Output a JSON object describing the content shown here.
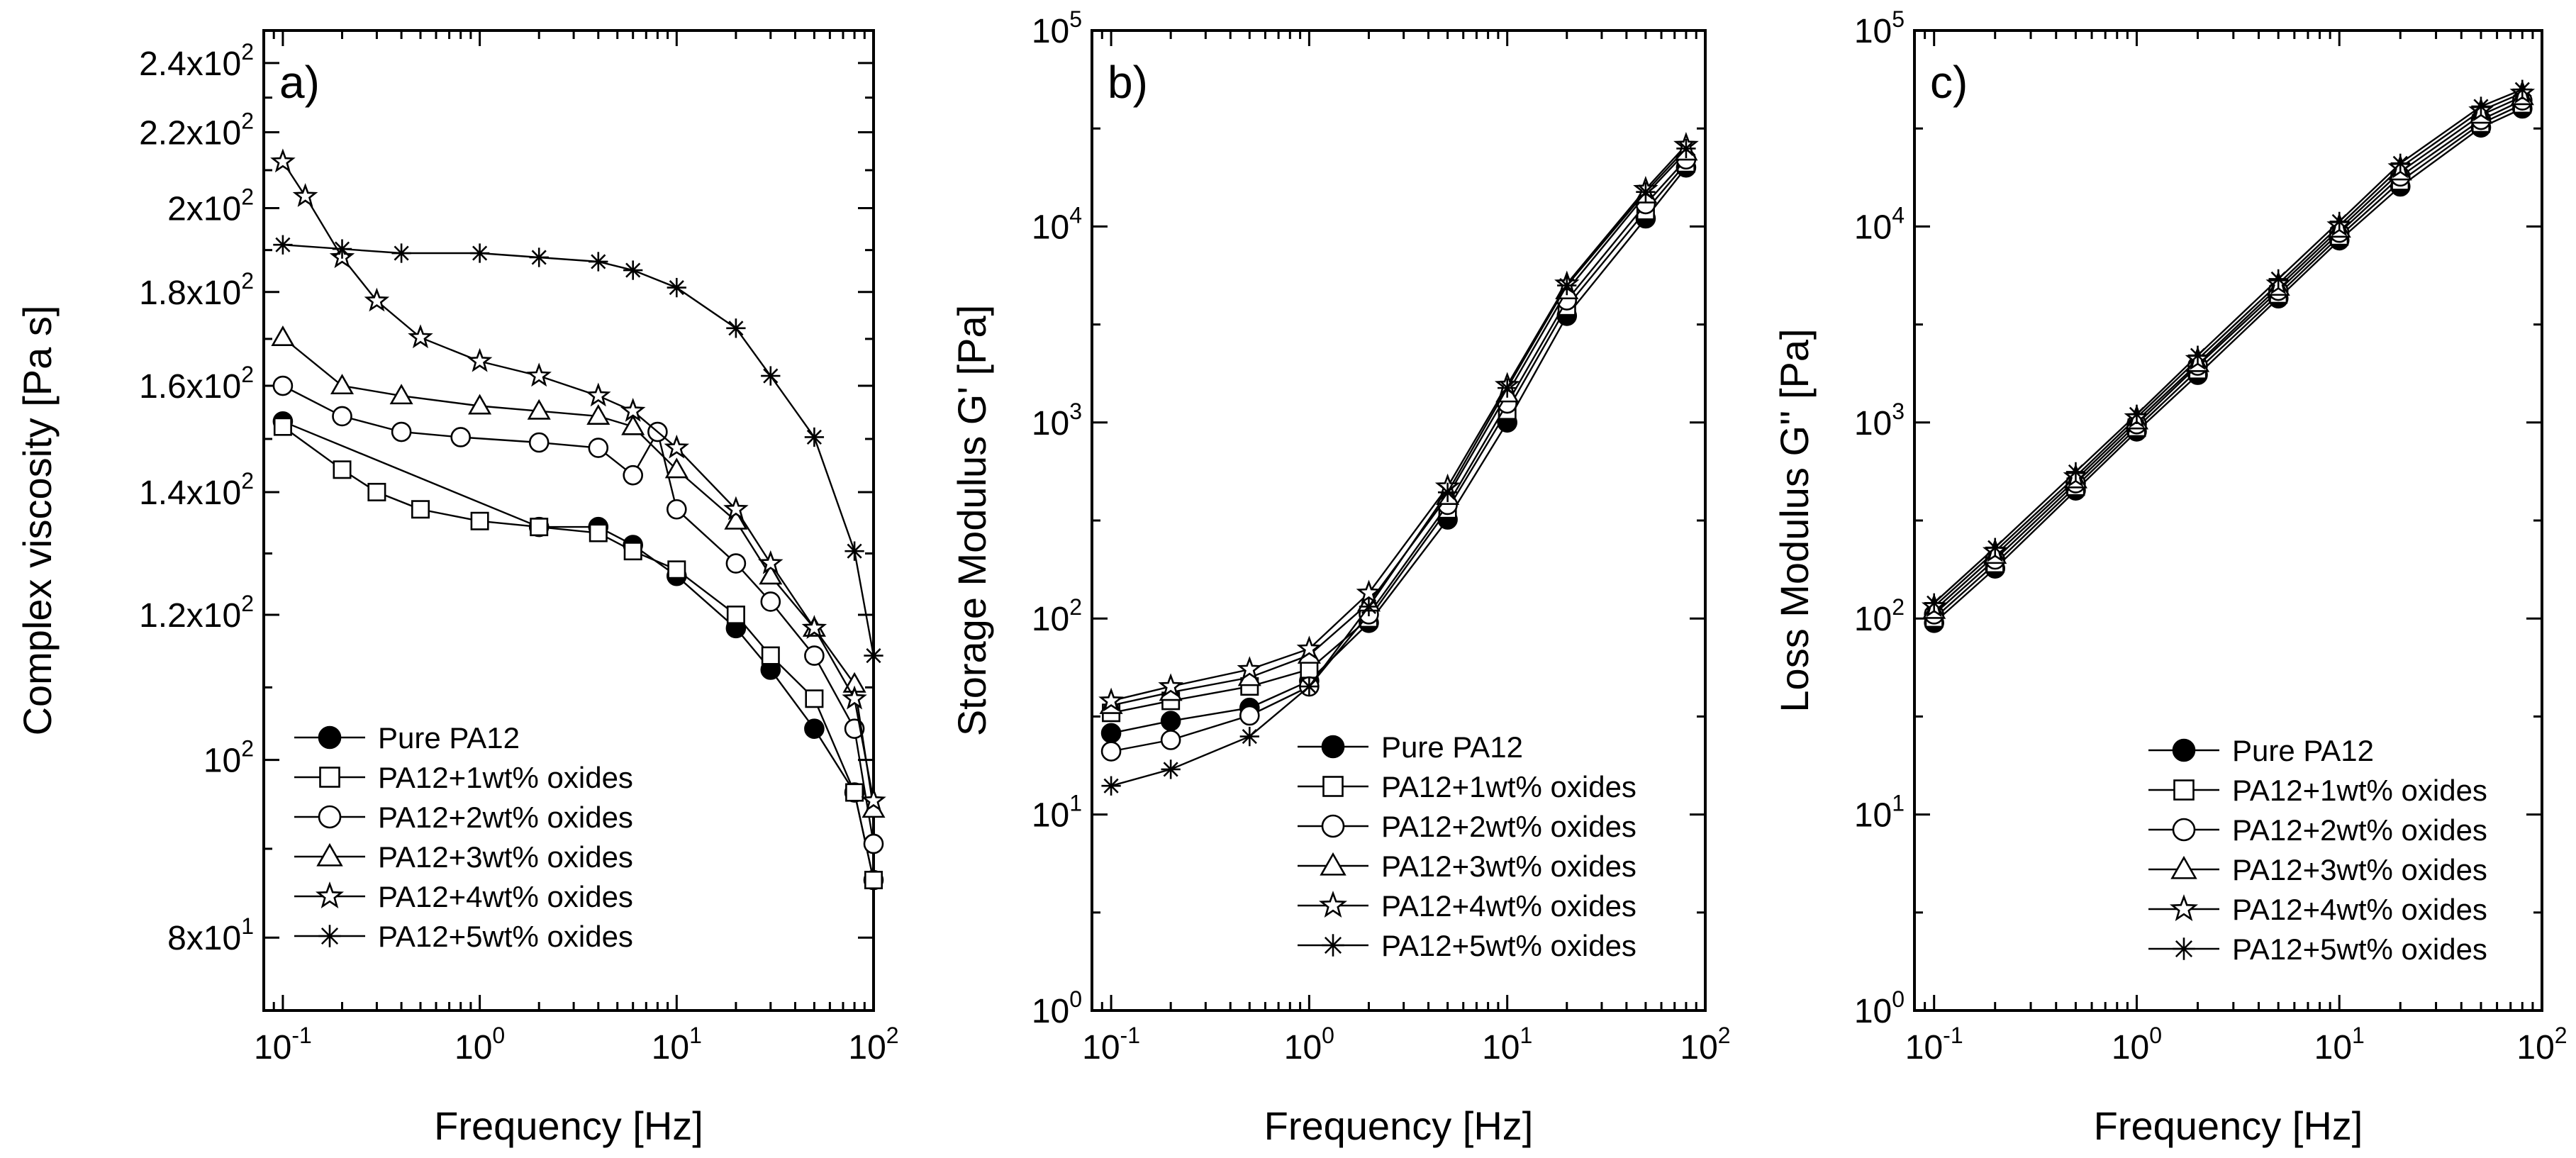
{
  "figure": {
    "panels": [
      "a",
      "b",
      "c"
    ]
  },
  "legend_entries": [
    "Pure PA12",
    "PA12+1wt% oxides",
    "PA12+2wt% oxides",
    "PA12+3wt% oxides",
    "PA12+4wt% oxides",
    "PA12+5wt% oxides"
  ],
  "marker_styles": [
    "filled-circle",
    "open-square",
    "open-circle",
    "open-triangle",
    "open-star",
    "asterisk"
  ],
  "colors": {
    "ink": "#000000",
    "background": "#ffffff"
  },
  "chart_data": [
    {
      "type": "line",
      "panel_label": "a)",
      "title": "",
      "xlabel": "Frequency [Hz]",
      "ylabel": "Complex viscosity [Pa s]",
      "xscale": "log",
      "yscale": "log",
      "xlim": [
        0.08,
        100
      ],
      "ylim": [
        73,
        250
      ],
      "x_ticks": [
        {
          "value": 0.1,
          "base": "10",
          "exp": "-1"
        },
        {
          "value": 1,
          "base": "10",
          "exp": "0"
        },
        {
          "value": 10,
          "base": "10",
          "exp": "1"
        },
        {
          "value": 100,
          "base": "10",
          "exp": "2"
        }
      ],
      "y_ticks": [
        {
          "value": 80,
          "base": "8x10",
          "exp": "1"
        },
        {
          "value": 100,
          "base": "10",
          "exp": "2"
        },
        {
          "value": 120,
          "base": "1.2x10",
          "exp": "2"
        },
        {
          "value": 140,
          "base": "1.4x10",
          "exp": "2"
        },
        {
          "value": 160,
          "base": "1.6x10",
          "exp": "2"
        },
        {
          "value": 180,
          "base": "1.8x10",
          "exp": "2"
        },
        {
          "value": 200,
          "base": "2x10",
          "exp": "2"
        },
        {
          "value": 220,
          "base": "2.2x10",
          "exp": "2"
        },
        {
          "value": 240,
          "base": "2.4x10",
          "exp": "2"
        }
      ],
      "legend_position": "bottom-left",
      "series": [
        {
          "name": "Pure PA12",
          "marker": "filled-circle",
          "x": [
            0.1,
            2,
            4,
            6,
            10,
            20,
            30,
            50,
            80,
            100
          ],
          "y": [
            153,
            134,
            134,
            131,
            126,
            118,
            112,
            104,
            96,
            86
          ]
        },
        {
          "name": "PA12+1wt% oxides",
          "marker": "open-square",
          "x": [
            0.1,
            0.2,
            0.3,
            0.5,
            1,
            2,
            4,
            6,
            10,
            20,
            30,
            50,
            80,
            100
          ],
          "y": [
            152,
            144,
            140,
            137,
            135,
            134,
            133,
            130,
            127,
            120,
            114,
            108,
            96,
            86
          ]
        },
        {
          "name": "PA12+2wt% oxides",
          "marker": "open-circle",
          "x": [
            0.1,
            0.2,
            0.4,
            0.8,
            2,
            4,
            6,
            8,
            10,
            20,
            30,
            50,
            80,
            100
          ],
          "y": [
            160,
            154,
            151,
            150,
            149,
            148,
            143,
            151,
            137,
            128,
            122,
            114,
            104,
            90
          ]
        },
        {
          "name": "PA12+3wt% oxides",
          "marker": "open-triangle",
          "x": [
            0.1,
            0.2,
            0.4,
            1,
            2,
            4,
            6,
            10,
            20,
            30,
            50,
            80,
            100
          ],
          "y": [
            170,
            160,
            158,
            156,
            155,
            154,
            152,
            144,
            135,
            126,
            118,
            110,
            94
          ]
        },
        {
          "name": "PA12+4wt% oxides",
          "marker": "open-star",
          "x": [
            0.1,
            0.13,
            0.2,
            0.3,
            0.5,
            1,
            2,
            4,
            6,
            10,
            20,
            30,
            50,
            80,
            100
          ],
          "y": [
            212,
            203,
            188,
            178,
            170,
            165,
            162,
            158,
            155,
            148,
            137,
            128,
            118,
            108,
            95
          ]
        },
        {
          "name": "PA12+5wt% oxides",
          "marker": "asterisk",
          "x": [
            0.1,
            0.2,
            0.4,
            1,
            2,
            4,
            6,
            10,
            20,
            30,
            50,
            80,
            100
          ],
          "y": [
            191,
            190,
            189,
            189,
            188,
            187,
            185,
            181,
            172,
            162,
            150,
            130,
            114
          ]
        }
      ]
    },
    {
      "type": "line",
      "panel_label": "b)",
      "title": "",
      "xlabel": "Frequency [Hz]",
      "ylabel": "Storage Modulus G' [Pa]",
      "xscale": "log",
      "yscale": "log",
      "xlim": [
        0.08,
        100
      ],
      "ylim": [
        1,
        100000
      ],
      "x_ticks": [
        {
          "value": 0.1,
          "base": "10",
          "exp": "-1"
        },
        {
          "value": 1,
          "base": "10",
          "exp": "0"
        },
        {
          "value": 10,
          "base": "10",
          "exp": "1"
        },
        {
          "value": 100,
          "base": "10",
          "exp": "2"
        }
      ],
      "y_ticks": [
        {
          "value": 1,
          "base": "10",
          "exp": "0"
        },
        {
          "value": 10,
          "base": "10",
          "exp": "1"
        },
        {
          "value": 100,
          "base": "10",
          "exp": "2"
        },
        {
          "value": 1000,
          "base": "10",
          "exp": "3"
        },
        {
          "value": 10000,
          "base": "10",
          "exp": "4"
        },
        {
          "value": 100000,
          "base": "10",
          "exp": "5"
        }
      ],
      "legend_position": "bottom-right",
      "series": [
        {
          "name": "Pure PA12",
          "marker": "filled-circle",
          "x": [
            0.1,
            0.2,
            0.5,
            1,
            2,
            5,
            10,
            20,
            50,
            80
          ],
          "y": [
            26,
            30,
            35,
            48,
            95,
            320,
            1000,
            3500,
            11000,
            20000
          ]
        },
        {
          "name": "PA12+1wt% oxides",
          "marker": "open-square",
          "x": [
            0.1,
            0.2,
            0.5,
            1,
            2,
            5,
            10,
            20,
            50,
            80
          ],
          "y": [
            33,
            38,
            45,
            55,
            100,
            360,
            1150,
            3900,
            12000,
            21000
          ]
        },
        {
          "name": "PA12+2wt% oxides",
          "marker": "open-circle",
          "x": [
            0.1,
            0.2,
            0.5,
            1,
            2,
            5,
            10,
            20,
            50,
            80
          ],
          "y": [
            21,
            24,
            32,
            45,
            105,
            380,
            1250,
            4200,
            13000,
            22000
          ]
        },
        {
          "name": "PA12+3wt% oxides",
          "marker": "open-triangle",
          "x": [
            0.1,
            0.2,
            0.5,
            1,
            2,
            5,
            10,
            20,
            50,
            80
          ],
          "y": [
            36,
            42,
            50,
            65,
            120,
            420,
            1400,
            4700,
            14500,
            24000
          ]
        },
        {
          "name": "PA12+4wt% oxides",
          "marker": "open-star",
          "x": [
            0.1,
            0.2,
            0.5,
            1,
            2,
            5,
            10,
            20,
            50,
            80
          ],
          "y": [
            38,
            45,
            55,
            70,
            135,
            470,
            1550,
            5100,
            15500,
            26000
          ]
        },
        {
          "name": "PA12+5wt% oxides",
          "marker": "asterisk",
          "x": [
            0.1,
            0.2,
            0.5,
            1,
            2,
            5,
            10,
            20,
            50,
            80
          ],
          "y": [
            14,
            17,
            25,
            45,
            115,
            440,
            1500,
            5000,
            15000,
            25000
          ]
        }
      ]
    },
    {
      "type": "line",
      "panel_label": "c)",
      "title": "",
      "xlabel": "Frequency [Hz]",
      "ylabel": "Loss Modulus G'' [Pa]",
      "xscale": "log",
      "yscale": "log",
      "xlim": [
        0.08,
        100
      ],
      "ylim": [
        1,
        100000
      ],
      "x_ticks": [
        {
          "value": 0.1,
          "base": "10",
          "exp": "-1"
        },
        {
          "value": 1,
          "base": "10",
          "exp": "0"
        },
        {
          "value": 10,
          "base": "10",
          "exp": "1"
        },
        {
          "value": 100,
          "base": "10",
          "exp": "2"
        }
      ],
      "y_ticks": [
        {
          "value": 1,
          "base": "10",
          "exp": "0"
        },
        {
          "value": 10,
          "base": "10",
          "exp": "1"
        },
        {
          "value": 100,
          "base": "10",
          "exp": "2"
        },
        {
          "value": 1000,
          "base": "10",
          "exp": "3"
        },
        {
          "value": 10000,
          "base": "10",
          "exp": "4"
        },
        {
          "value": 100000,
          "base": "10",
          "exp": "5"
        }
      ],
      "legend_position": "bottom-right",
      "series": [
        {
          "name": "Pure PA12",
          "marker": "filled-circle",
          "x": [
            0.1,
            0.2,
            0.5,
            1,
            2,
            5,
            10,
            20,
            50,
            80
          ],
          "y": [
            95,
            180,
            450,
            900,
            1750,
            4300,
            8500,
            16000,
            32000,
            40000
          ]
        },
        {
          "name": "PA12+1wt% oxides",
          "marker": "open-square",
          "x": [
            0.1,
            0.2,
            0.5,
            1,
            2,
            5,
            10,
            20,
            50,
            80
          ],
          "y": [
            100,
            190,
            470,
            940,
            1850,
            4500,
            8900,
            17000,
            33500,
            42000
          ]
        },
        {
          "name": "PA12+2wt% oxides",
          "marker": "open-circle",
          "x": [
            0.1,
            0.2,
            0.5,
            1,
            2,
            5,
            10,
            20,
            50,
            80
          ],
          "y": [
            105,
            200,
            490,
            980,
            1950,
            4700,
            9300,
            18000,
            35000,
            44000
          ]
        },
        {
          "name": "PA12+3wt% oxides",
          "marker": "open-triangle",
          "x": [
            0.1,
            0.2,
            0.5,
            1,
            2,
            5,
            10,
            20,
            50,
            80
          ],
          "y": [
            110,
            210,
            510,
            1020,
            2000,
            4900,
            9700,
            19000,
            37000,
            46000
          ]
        },
        {
          "name": "PA12+4wt% oxides",
          "marker": "open-star",
          "x": [
            0.1,
            0.2,
            0.5,
            1,
            2,
            5,
            10,
            20,
            50,
            80
          ],
          "y": [
            115,
            220,
            530,
            1060,
            2100,
            5100,
            10100,
            20000,
            39000,
            48000
          ]
        },
        {
          "name": "PA12+5wt% oxides",
          "marker": "asterisk",
          "x": [
            0.1,
            0.2,
            0.5,
            1,
            2,
            5,
            10,
            20,
            50,
            80
          ],
          "y": [
            120,
            230,
            560,
            1100,
            2200,
            5400,
            10600,
            21000,
            41000,
            50000
          ]
        }
      ]
    }
  ]
}
